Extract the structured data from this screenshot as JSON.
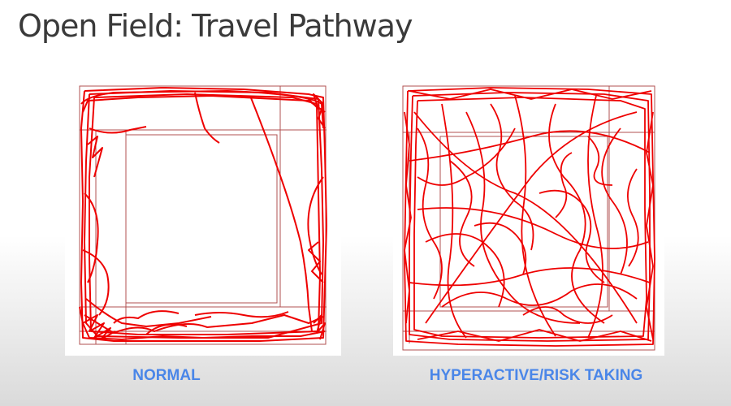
{
  "slide": {
    "title": "Open Field: Travel Pathway"
  },
  "panels": [
    {
      "id": "normal",
      "caption": "NORMAL",
      "path_color": "#ee0000",
      "zone_line_color": "#b05050"
    },
    {
      "id": "hyperactive",
      "caption": "HYPERACTIVE/RISK TAKING",
      "path_color": "#ee0000",
      "zone_line_color": "#b05050"
    }
  ],
  "colors": {
    "title": "#3a3a3a",
    "caption": "#4a86e8",
    "trace": "#ee0000"
  }
}
